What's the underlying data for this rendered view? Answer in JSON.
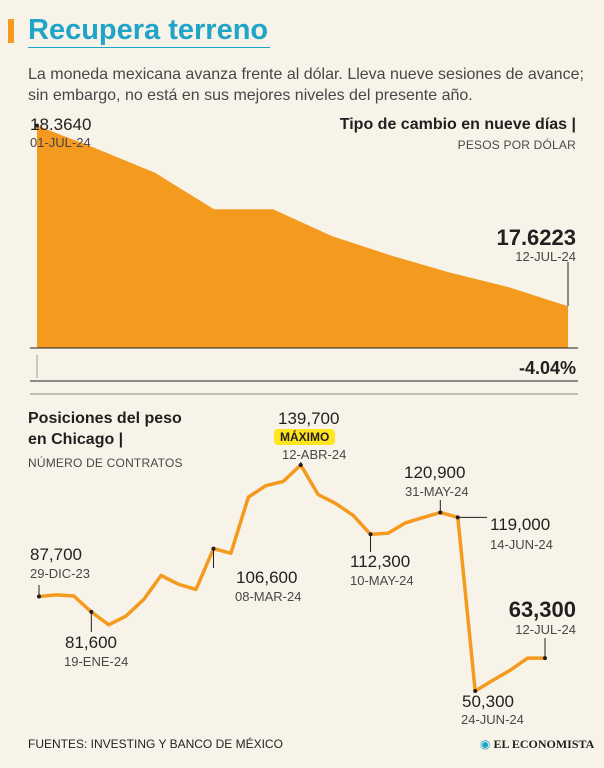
{
  "header": {
    "title": "Recupera terreno",
    "subtitle": "La moneda mexicana avanza frente al dólar. Lleva nueve sesiones de avance; sin embargo, no está en sus mejores niveles del presente año."
  },
  "colors": {
    "accent": "#f39a1f",
    "title": "#20a4c8",
    "highlight": "#ffe51f",
    "background": "#f7f3e9"
  },
  "chart_data": [
    {
      "type": "area",
      "title": "Tipo de cambio en nueve días",
      "unit_label": "PESOS POR DÓLAR",
      "series": [
        {
          "values": [
            18.364,
            18.27,
            18.17,
            18.02,
            18.02,
            17.91,
            17.83,
            17.76,
            17.7,
            17.622
          ]
        }
      ],
      "ylim": [
        17.45,
        18.42
      ],
      "start": {
        "value": "18.3640",
        "date": "01-JUL-24"
      },
      "end": {
        "value": "17.6223",
        "date": "12-JUL-24"
      },
      "change": "-4.04%"
    },
    {
      "type": "line",
      "title_line1": "Posiciones  del peso",
      "title_line2": "en Chicago",
      "unit_label": "NÚMERO DE CONTRATOS",
      "series": [
        {
          "values": [
            87700,
            88300,
            87900,
            81600,
            76500,
            80000,
            86500,
            96000,
            92500,
            90500,
            106600,
            104800,
            127000,
            131500,
            133200,
            139700,
            128000,
            124500,
            119800,
            112300,
            112700,
            116800,
            118900,
            120900,
            119000,
            50300,
            54500,
            58500,
            63300,
            63300
          ]
        }
      ],
      "ylim": [
        42000,
        148000
      ],
      "annotations": [
        {
          "value": "87,700",
          "date": "29-DIC-23"
        },
        {
          "value": "81,600",
          "date": "19-ENE-24"
        },
        {
          "value": "106,600",
          "date": "08-MAR-24"
        },
        {
          "value": "139,700",
          "date": "12-ABR-24",
          "tag": "MÁXIMO"
        },
        {
          "value": "112,300",
          "date": "10-MAY-24"
        },
        {
          "value": "120,900",
          "date": "31-MAY-24"
        },
        {
          "value": "119,000",
          "date": "14-JUN-24"
        },
        {
          "value": "50,300",
          "date": "24-JUN-24"
        },
        {
          "value": "63,300",
          "date": "12-JUL-24"
        }
      ]
    }
  ],
  "footer": {
    "sources": "FUENTES: INVESTING Y BANCO DE MÉXICO",
    "brand": "EL ECONOMISTA"
  }
}
